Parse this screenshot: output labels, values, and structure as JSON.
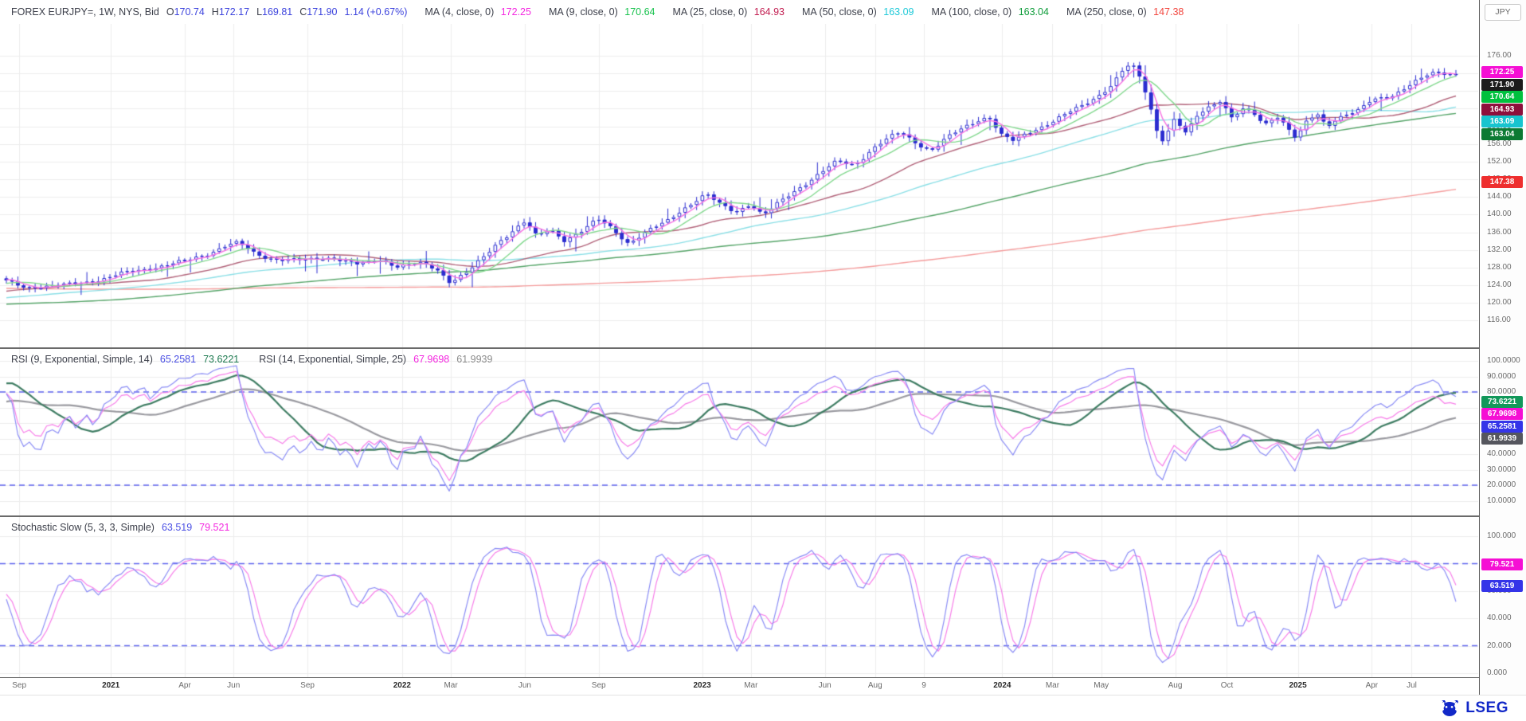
{
  "app": {
    "currency_label": "JPY",
    "logo_text": "LSEG"
  },
  "header": {
    "instrument": "FOREX EURJPY=, 1W, NYS, Bid",
    "fields": [
      {
        "label": "O",
        "value": "170.74"
      },
      {
        "label": "H",
        "value": "172.17"
      },
      {
        "label": "L",
        "value": "169.81"
      },
      {
        "label": "C",
        "value": "171.90"
      }
    ],
    "change": "1.14 (+0.67%)",
    "value_color": "#3c43dd",
    "mas": [
      {
        "label": "MA (4, close, 0)",
        "value": "172.25",
        "color": "#f428e0"
      },
      {
        "label": "MA (9, close, 0)",
        "value": "170.64",
        "color": "#17c24d"
      },
      {
        "label": "MA (25, close, 0)",
        "value": "164.93",
        "color": "#c21d50"
      },
      {
        "label": "MA (50, close, 0)",
        "value": "163.09",
        "color": "#1ec9d8"
      },
      {
        "label": "MA (100, close, 0)",
        "value": "163.04",
        "color": "#0e9c3a"
      },
      {
        "label": "MA (250, close, 0)",
        "value": "147.38",
        "color": "#f2453d"
      }
    ]
  },
  "price_axis": {
    "grid_labels": [
      {
        "text": "176.00",
        "value": 176
      },
      {
        "text": "172.00",
        "value": 172
      },
      {
        "text": "168.00",
        "value": 168
      },
      {
        "text": "164.00",
        "value": 164
      },
      {
        "text": "160.00",
        "value": 160
      },
      {
        "text": "156.00",
        "value": 156
      },
      {
        "text": "152.00",
        "value": 152
      },
      {
        "text": "148.00",
        "value": 148
      },
      {
        "text": "144.00",
        "value": 144
      },
      {
        "text": "140.00",
        "value": 140
      },
      {
        "text": "136.00",
        "value": 136
      },
      {
        "text": "132.00",
        "value": 132
      },
      {
        "text": "128.00",
        "value": 128
      },
      {
        "text": "124.00",
        "value": 124
      },
      {
        "text": "120.00",
        "value": 120
      },
      {
        "text": "116.00",
        "value": 116
      }
    ],
    "badges": [
      {
        "text": "172.25",
        "value": 172.25,
        "bg": "#f50fd4"
      },
      {
        "text": "171.90",
        "value": 171.9,
        "bg": "#1c1c1c"
      },
      {
        "text": "170.64",
        "value": 170.64,
        "bg": "#00c13e"
      },
      {
        "text": "164.93",
        "value": 164.93,
        "bg": "#8e0f3c"
      },
      {
        "text": "163.09",
        "value": 163.09,
        "bg": "#17c4cf"
      },
      {
        "text": "163.04",
        "value": 163.04,
        "bg": "#0c7a33"
      },
      {
        "text": "147.38",
        "value": 147.38,
        "bg": "#ee2e2e"
      }
    ]
  },
  "rsi_pane": {
    "legend": [
      {
        "name": "RSI (9, Exponential, Simple, 14)",
        "values": [
          {
            "text": "65.2581",
            "color": "#4a4fe4"
          },
          {
            "text": "73.6221",
            "color": "#1d7a50"
          }
        ]
      },
      {
        "name": "RSI (14, Exponential, Simple, 25)",
        "values": [
          {
            "text": "67.9698",
            "color": "#f428e0"
          },
          {
            "text": "61.9939",
            "color": "#8c8c8c"
          }
        ]
      }
    ],
    "axis_labels": [
      {
        "text": "100.0000",
        "value": 100
      },
      {
        "text": "90.0000",
        "value": 90
      },
      {
        "text": "80.0000",
        "value": 80
      },
      {
        "text": "70.0000",
        "value": 70
      },
      {
        "text": "60.0000",
        "value": 60
      },
      {
        "text": "50.0000",
        "value": 50
      },
      {
        "text": "40.0000",
        "value": 40
      },
      {
        "text": "30.0000",
        "value": 30
      },
      {
        "text": "20.0000",
        "value": 20
      },
      {
        "text": "10.0000",
        "value": 10
      }
    ],
    "badges": [
      {
        "text": "73.6221",
        "value": 73.6221,
        "bg": "#12985a"
      },
      {
        "text": "67.9698",
        "value": 67.9698,
        "bg": "#f50fd4"
      },
      {
        "text": "65.2581",
        "value": 65.2581,
        "bg": "#3434e8"
      },
      {
        "text": "61.9939",
        "value": 61.9939,
        "bg": "#55565e"
      }
    ]
  },
  "stoch_pane": {
    "legend_name": "Stochastic Slow (5, 3, 3, Simple)",
    "legend_values": [
      {
        "text": "63.519",
        "color": "#4a4fe4"
      },
      {
        "text": "79.521",
        "color": "#f428e0"
      }
    ],
    "axis_labels": [
      {
        "text": "100.000",
        "value": 100
      },
      {
        "text": "80.000",
        "value": 80
      },
      {
        "text": "60.000",
        "value": 60
      },
      {
        "text": "40.000",
        "value": 40
      },
      {
        "text": "20.000",
        "value": 20
      },
      {
        "text": "0.000",
        "value": 0
      }
    ],
    "badges": [
      {
        "text": "79.521",
        "value": 79.521,
        "bg": "#f50fd4"
      },
      {
        "text": "63.519",
        "value": 63.519,
        "bg": "#3434e8"
      }
    ]
  },
  "x_axis": {
    "ticks": [
      {
        "label": "Sep",
        "t": 0.013
      },
      {
        "label": "2021",
        "t": 0.075,
        "bold": true
      },
      {
        "label": "Apr",
        "t": 0.125
      },
      {
        "label": "Jun",
        "t": 0.158
      },
      {
        "label": "Sep",
        "t": 0.208
      },
      {
        "label": "2022",
        "t": 0.272,
        "bold": true
      },
      {
        "label": "Mar",
        "t": 0.305
      },
      {
        "label": "Jun",
        "t": 0.355
      },
      {
        "label": "Sep",
        "t": 0.405
      },
      {
        "label": "2023",
        "t": 0.475,
        "bold": true
      },
      {
        "label": "Mar",
        "t": 0.508
      },
      {
        "label": "Jun",
        "t": 0.558
      },
      {
        "label": "Aug",
        "t": 0.592
      },
      {
        "label": "9",
        "t": 0.625
      },
      {
        "label": "2024",
        "t": 0.678,
        "bold": true
      },
      {
        "label": "Mar",
        "t": 0.712
      },
      {
        "label": "May",
        "t": 0.745
      },
      {
        "label": "Aug",
        "t": 0.795
      },
      {
        "label": "Oct",
        "t": 0.83
      },
      {
        "label": "2025",
        "t": 0.878,
        "bold": true
      },
      {
        "label": "Apr",
        "t": 0.928
      },
      {
        "label": "Jul",
        "t": 0.955
      }
    ]
  },
  "chart_data": {
    "type": "candlestick",
    "symbol": "FOREX EURJPY=",
    "interval": "1W",
    "price_range": [
      116,
      176
    ],
    "grid_step": 4,
    "num_candles": 253,
    "ohlc_current": {
      "open": 170.74,
      "high": 172.17,
      "low": 169.81,
      "close": 171.9,
      "change": 1.14,
      "change_pct": 0.67
    },
    "candle": {
      "up_fill": "#ffffff",
      "down_fill": "#2c2dd0",
      "stroke": "#2c2dd0"
    },
    "grid_color": "#ededed",
    "band_color": "#5d63ee",
    "overlays": [
      {
        "name": "MA250",
        "period": 250,
        "value": 147.38,
        "line_color": "#f49b9b"
      },
      {
        "name": "MA100",
        "period": 100,
        "value": 163.04,
        "line_color": "#55a468"
      },
      {
        "name": "MA50",
        "period": 50,
        "value": 163.09,
        "line_color": "#8adfe6"
      },
      {
        "name": "MA25",
        "period": 25,
        "value": 164.93,
        "line_color": "#b2637a"
      },
      {
        "name": "MA9",
        "period": 9,
        "value": 170.64,
        "line_color": "#82d88e"
      },
      {
        "name": "MA4",
        "period": 4,
        "value": 172.25,
        "line_color": "#f772e2"
      }
    ],
    "indicators": [
      {
        "name": "RSI",
        "params": [
          9,
          "Exponential",
          "Simple",
          14
        ],
        "current": [
          65.2581,
          73.6221
        ],
        "range": [
          0,
          100
        ],
        "bands": [
          80,
          20
        ],
        "line_colors": [
          "#8a8cf5",
          "#3f7d63"
        ]
      },
      {
        "name": "RSI",
        "params": [
          14,
          "Exponential",
          "Simple",
          25
        ],
        "current": [
          67.9698,
          61.9939
        ],
        "range": [
          0,
          100
        ],
        "bands": [
          80,
          20
        ],
        "line_colors": [
          "#f77ee9",
          "#9a9aa0"
        ]
      },
      {
        "name": "Stochastic Slow",
        "params": [
          5,
          3,
          3,
          "Simple"
        ],
        "current": [
          63.519,
          79.521
        ],
        "range": [
          0,
          100
        ],
        "bands": [
          80,
          20
        ],
        "line_colors": [
          "#8a8cf5",
          "#f77ee9"
        ]
      }
    ],
    "price_keypoints": [
      [
        0,
        124.8
      ],
      [
        0.013,
        123.6
      ],
      [
        0.04,
        124
      ],
      [
        0.066,
        125.4
      ],
      [
        0.079,
        126.6
      ],
      [
        0.105,
        128.3
      ],
      [
        0.125,
        129.6
      ],
      [
        0.139,
        131.2
      ],
      [
        0.152,
        133.2
      ],
      [
        0.16,
        133.6
      ],
      [
        0.172,
        131
      ],
      [
        0.185,
        130
      ],
      [
        0.205,
        129.6
      ],
      [
        0.225,
        130.4
      ],
      [
        0.243,
        128.6
      ],
      [
        0.258,
        129.8
      ],
      [
        0.27,
        128.4
      ],
      [
        0.285,
        128.9
      ],
      [
        0.297,
        127.6
      ],
      [
        0.306,
        124.9
      ],
      [
        0.318,
        127
      ],
      [
        0.33,
        130.5
      ],
      [
        0.34,
        134
      ],
      [
        0.352,
        137.2
      ],
      [
        0.358,
        138.6
      ],
      [
        0.366,
        134.8
      ],
      [
        0.375,
        136.6
      ],
      [
        0.385,
        134.3
      ],
      [
        0.398,
        136.6
      ],
      [
        0.408,
        138.9
      ],
      [
        0.418,
        136.8
      ],
      [
        0.429,
        133.6
      ],
      [
        0.443,
        136.4
      ],
      [
        0.455,
        138.3
      ],
      [
        0.466,
        141.2
      ],
      [
        0.477,
        143.6
      ],
      [
        0.483,
        144.6
      ],
      [
        0.493,
        142.1
      ],
      [
        0.503,
        140.6
      ],
      [
        0.513,
        142.6
      ],
      [
        0.522,
        139.8
      ],
      [
        0.535,
        143.2
      ],
      [
        0.548,
        146.4
      ],
      [
        0.561,
        149.4
      ],
      [
        0.573,
        152
      ],
      [
        0.585,
        151.2
      ],
      [
        0.598,
        155.2
      ],
      [
        0.61,
        157.6
      ],
      [
        0.617,
        158.6
      ],
      [
        0.628,
        156.2
      ],
      [
        0.638,
        154.6
      ],
      [
        0.648,
        157.2
      ],
      [
        0.66,
        159.6
      ],
      [
        0.672,
        161.8
      ],
      [
        0.678,
        162.2
      ],
      [
        0.687,
        157.8
      ],
      [
        0.695,
        156.6
      ],
      [
        0.706,
        158.8
      ],
      [
        0.718,
        160.6
      ],
      [
        0.73,
        162.6
      ],
      [
        0.742,
        164.6
      ],
      [
        0.753,
        167
      ],
      [
        0.763,
        169.6
      ],
      [
        0.77,
        172.6
      ],
      [
        0.776,
        174.2
      ],
      [
        0.782,
        171
      ],
      [
        0.788,
        166
      ],
      [
        0.793,
        159.5
      ],
      [
        0.798,
        157
      ],
      [
        0.806,
        161.8
      ],
      [
        0.814,
        158.2
      ],
      [
        0.822,
        162.6
      ],
      [
        0.831,
        164.8
      ],
      [
        0.838,
        166.2
      ],
      [
        0.845,
        162
      ],
      [
        0.853,
        163.8
      ],
      [
        0.861,
        162.6
      ],
      [
        0.868,
        160.2
      ],
      [
        0.876,
        162.8
      ],
      [
        0.884,
        159.8
      ],
      [
        0.89,
        157.2
      ],
      [
        0.897,
        161
      ],
      [
        0.904,
        162.8
      ],
      [
        0.911,
        160
      ],
      [
        0.918,
        162
      ],
      [
        0.925,
        163
      ],
      [
        0.932,
        163.4
      ],
      [
        0.94,
        165.4
      ],
      [
        0.948,
        166.4
      ],
      [
        0.956,
        167
      ],
      [
        0.963,
        168.6
      ],
      [
        0.97,
        169.8
      ],
      [
        0.978,
        171.2
      ],
      [
        0.986,
        172.1
      ],
      [
        1,
        171.9
      ]
    ],
    "prehistory_keypoints": [
      [
        0,
        126.5
      ],
      [
        0.25,
        128
      ],
      [
        0.45,
        124.5
      ],
      [
        0.6,
        121
      ],
      [
        0.7,
        117.2
      ],
      [
        0.78,
        118
      ],
      [
        0.86,
        119.6
      ],
      [
        0.93,
        121.5
      ],
      [
        1,
        124.5
      ]
    ]
  }
}
